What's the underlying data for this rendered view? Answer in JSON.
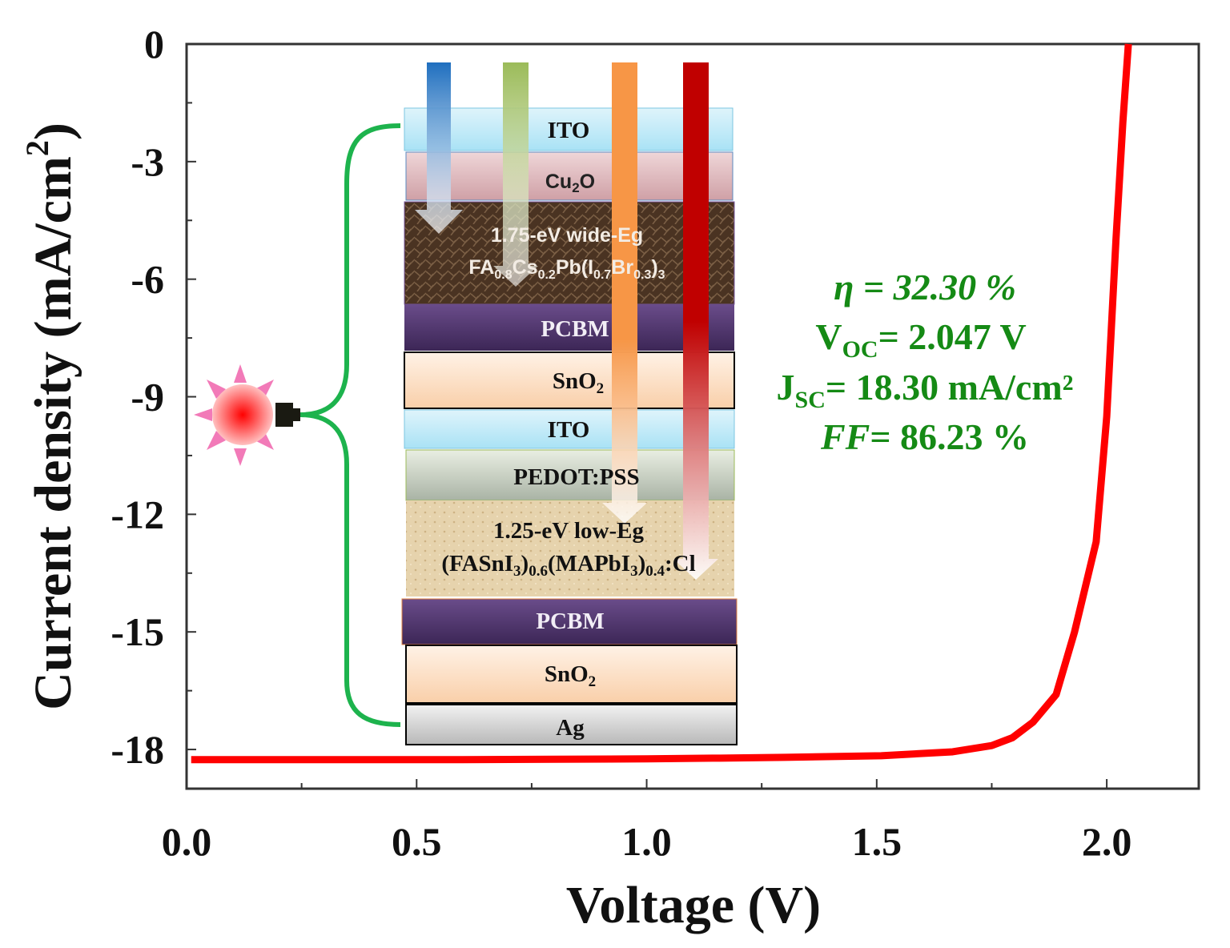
{
  "chart_data": {
    "type": "line",
    "xlabel": "Voltage (V)",
    "ylabel_main": "Current density (mA/cm",
    "ylabel_sup": "2",
    "ylabel_close": ")",
    "xlim": [
      0,
      2.2
    ],
    "ylim": [
      -19,
      0
    ],
    "xticks": [
      0.0,
      0.5,
      1.0,
      1.5,
      2.0
    ],
    "xtick_labels": [
      "0.0",
      "0.5",
      "1.0",
      "1.5",
      "2.0"
    ],
    "yticks": [
      0,
      -3,
      -6,
      -9,
      -12,
      -15,
      -18
    ],
    "ytick_labels": [
      "0",
      "-3",
      "-6",
      "-9",
      "-12",
      "-15",
      "-18"
    ],
    "grid": false,
    "series": [
      {
        "color": "#ff0000",
        "x": [
          0.01,
          0.2,
          0.4,
          0.6,
          0.8,
          1.0,
          1.16,
          1.3,
          1.51,
          1.665,
          1.75,
          1.795,
          1.84,
          1.89,
          1.93,
          1.977,
          2.0,
          2.02,
          2.035,
          2.047
        ],
        "y": [
          -18.26,
          -18.26,
          -18.26,
          -18.26,
          -18.25,
          -18.24,
          -18.22,
          -18.2,
          -18.16,
          -18.06,
          -17.9,
          -17.7,
          -17.3,
          -16.6,
          -15.0,
          -12.7,
          -9.5,
          -5.0,
          -2.0,
          0.0
        ]
      }
    ],
    "annotations": {
      "eta": "η = 32.30 %",
      "voc_label": "V",
      "voc_sub": "OC",
      "voc_value": "= 2.047 V",
      "jsc_label": "J",
      "jsc_sub": "SC",
      "jsc_value": "= 18.30 mA/cm²",
      "ff_label": "FF",
      "ff_value": "= 86.23 %",
      "color": "#158a15"
    }
  },
  "inset": {
    "layers": [
      {
        "label": "ITO"
      },
      {
        "label": "Cu",
        "sub": "2",
        "tail": "O"
      },
      {
        "line1": "1.75-eV wide-Eg",
        "formula": "FA0.8Cs0.2Pb(I0.7Br0.3)3"
      },
      {
        "label": "PCBM"
      },
      {
        "label": "SnO",
        "sub": "2"
      },
      {
        "label": "ITO"
      },
      {
        "label": "PEDOT:PSS"
      },
      {
        "line1": "1.25-eV low-Eg",
        "formula": "(FASnI3)0.6(MAPbI3)0.4:Cl"
      },
      {
        "label": "PCBM"
      },
      {
        "label": "SnO",
        "sub": "2"
      },
      {
        "label": "Ag"
      }
    ],
    "arrow_colors": [
      "#1f6fbf",
      "#9bbb59",
      "#f79646",
      "#c00000"
    ],
    "icons": [
      "light-bulb-icon",
      "brace-icon"
    ]
  }
}
